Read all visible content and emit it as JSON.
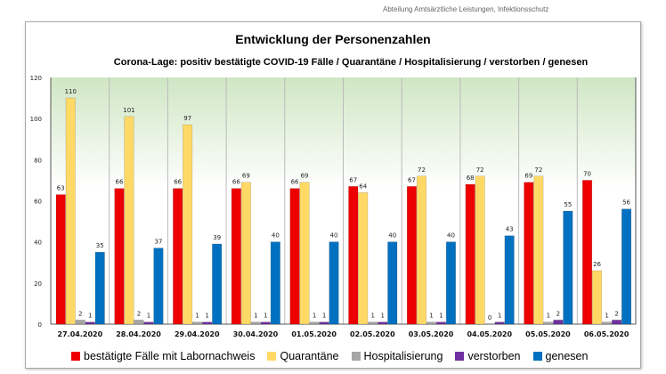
{
  "header": {
    "org_line": "Abteilung Amtsärztliche Leistungen, Infektionsschutz"
  },
  "chart_data": {
    "type": "bar",
    "title": "Entwicklung der Personenzahlen",
    "subtitle": "Corona-Lage: positiv bestätigte COVID-19 Fälle / Quarantäne / Hospitalisierung / verstorben / genesen",
    "categories": [
      "27.04.2020",
      "28.04.2020",
      "29.04.2020",
      "30.04.2020",
      "01.05.2020",
      "02.05.2020",
      "03.05.2020",
      "04.05.2020",
      "05.05.2020",
      "06.05.2020"
    ],
    "ylim": [
      0,
      120
    ],
    "yticks": [
      0,
      20,
      40,
      60,
      80,
      100,
      120
    ],
    "legend_position": "bottom",
    "series": [
      {
        "name": "bestätigte Fälle mit Labornachweis",
        "color": "#ee0000",
        "values": [
          63,
          66,
          66,
          66,
          66,
          67,
          67,
          68,
          69,
          70
        ]
      },
      {
        "name": "Quarantäne",
        "color": "#ffd966",
        "values": [
          110,
          101,
          97,
          69,
          69,
          64,
          72,
          72,
          72,
          26
        ]
      },
      {
        "name": "Hospitalisierung",
        "color": "#a6a6a6",
        "values": [
          2,
          2,
          1,
          1,
          1,
          1,
          1,
          0,
          1,
          1
        ]
      },
      {
        "name": "verstorben",
        "color": "#7030a0",
        "values": [
          1,
          1,
          1,
          1,
          1,
          1,
          1,
          1,
          2,
          2
        ]
      },
      {
        "name": "genesen",
        "color": "#0070c0",
        "values": [
          35,
          37,
          39,
          40,
          40,
          40,
          40,
          43,
          55,
          56
        ]
      }
    ]
  }
}
